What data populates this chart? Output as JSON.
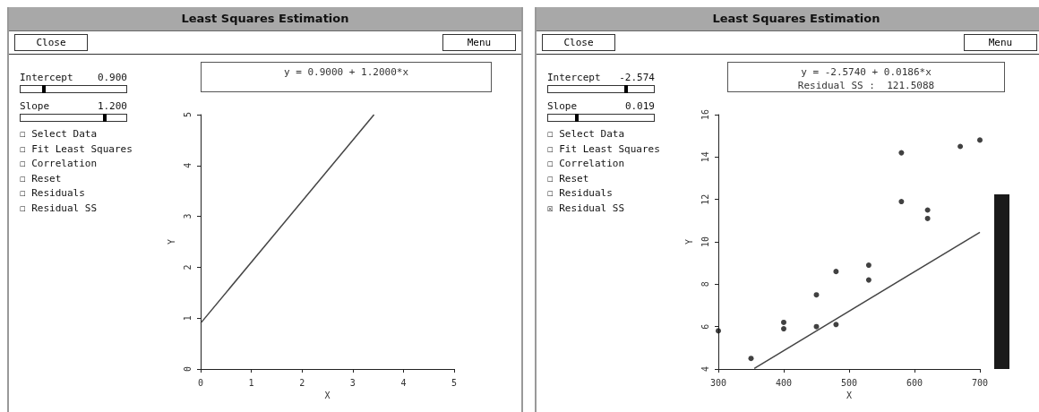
{
  "chart_data": [
    {
      "type": "line",
      "title": "Least Squares Estimation",
      "xlabel": "X",
      "ylabel": "Y",
      "marker": "none",
      "grid": false,
      "annotations": [
        "Close",
        "Menu",
        "Intercept",
        "0.900",
        "Slope",
        "1.200",
        "☐ Select Data",
        "☐ Fit Least Squares",
        "☐ Correlation",
        "☐ Reset",
        "☐ Residuals",
        "☐ Residual SS",
        "y = 0.9000 + 1.2000*x"
      ],
      "xlim": [
        0,
        5
      ],
      "xticks": [
        0,
        1,
        2,
        3,
        4,
        5
      ],
      "ylim": [
        0,
        5
      ],
      "yticks": [
        0,
        1,
        2,
        3,
        4,
        5
      ],
      "series": [
        {
          "color": "#444444",
          "x": [
            0,
            3.42
          ],
          "values": [
            0.9,
            5.0
          ]
        }
      ]
    },
    {
      "type": "scatter",
      "title": "Least Squares Estimation",
      "xlabel": "X",
      "ylabel": "Y",
      "marker": "circle",
      "grid": false,
      "annotations": [
        "Close",
        "Menu",
        "Intercept",
        "-2.574",
        "Slope",
        "0.019",
        "☐ Select Data",
        "☐ Fit Least Squares",
        "☐ Correlation",
        "☐ Reset",
        "☐ Residuals",
        "☒ Residual SS",
        "y = -2.5740 + 0.0186*x",
        "Residual SS :  121.5088"
      ],
      "xlim": [
        300,
        700
      ],
      "xticks": [
        300,
        400,
        500,
        600,
        700
      ],
      "ylim": [
        4,
        16
      ],
      "yticks": [
        4,
        6,
        8,
        10,
        12,
        14,
        16
      ],
      "series": [
        {
          "color": "#111111",
          "x": [
            300,
            350,
            400,
            400,
            450,
            450,
            480,
            480,
            530,
            530,
            580,
            580,
            620,
            620,
            670,
            700
          ],
          "values": [
            5.8,
            4.5,
            6.2,
            5.9,
            7.5,
            6.0,
            8.6,
            6.1,
            8.9,
            8.2,
            14.2,
            11.9,
            11.5,
            11.1,
            14.5,
            14.8
          ]
        },
        {
          "type": "line",
          "marker": "none",
          "color": "#444444",
          "x": [
            355,
            700
          ],
          "values": [
            4.03,
            10.45
          ]
        }
      ]
    }
  ]
}
